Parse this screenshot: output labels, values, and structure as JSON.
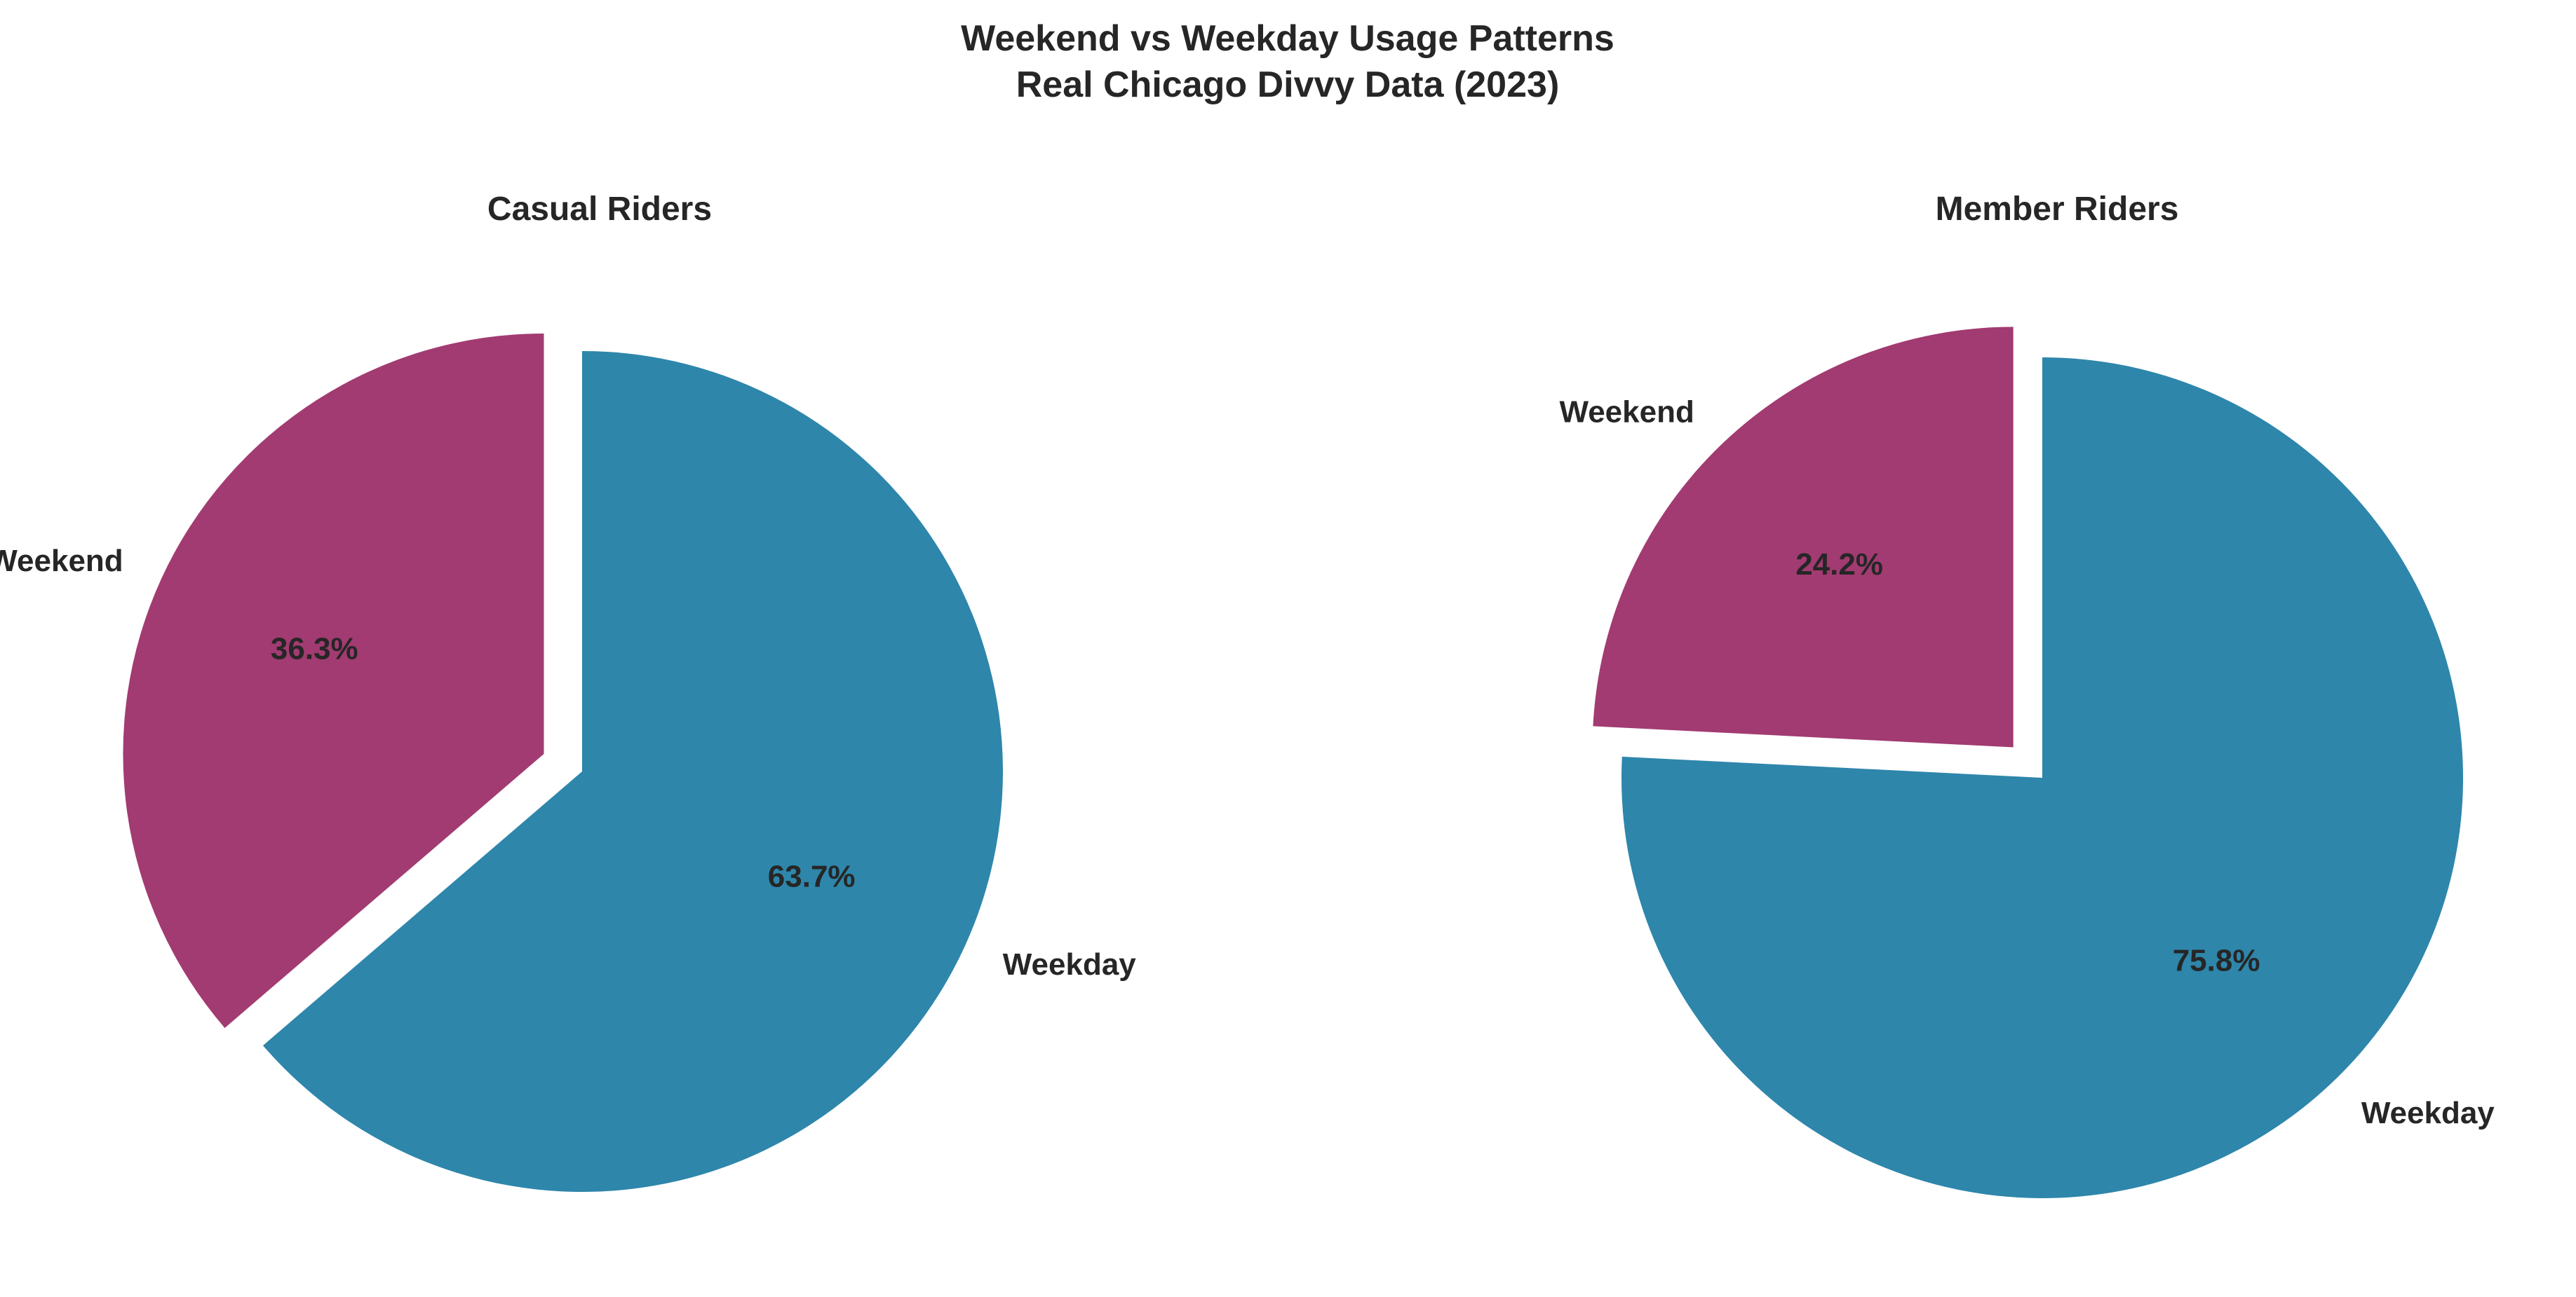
{
  "title_line1": "Weekend vs Weekday Usage Patterns",
  "title_line2": "Real Chicago Divvy Data (2023)",
  "colors": {
    "weekday": "#2e86ab",
    "weekend": "#a23b72",
    "text": "#262626",
    "background": "#ffffff"
  },
  "chart_data": [
    {
      "type": "pie",
      "title": "Casual Riders",
      "labels": [
        "Weekday",
        "Weekend"
      ],
      "values": [
        63.7,
        36.3
      ],
      "value_labels": [
        "63.7%",
        "36.3%"
      ],
      "colors": [
        "#2e86ab",
        "#a23b72"
      ],
      "exploded": [
        "Weekend"
      ],
      "start_angle_deg": 90,
      "direction": "clockwise"
    },
    {
      "type": "pie",
      "title": "Member Riders",
      "labels": [
        "Weekday",
        "Weekend"
      ],
      "values": [
        75.8,
        24.2
      ],
      "value_labels": [
        "75.8%",
        "24.2%"
      ],
      "colors": [
        "#2e86ab",
        "#a23b72"
      ],
      "exploded": [
        "Weekend"
      ],
      "start_angle_deg": 90,
      "direction": "clockwise"
    }
  ]
}
